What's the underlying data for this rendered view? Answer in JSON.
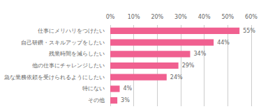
{
  "chart_data": {
    "type": "bar",
    "orientation": "horizontal",
    "categories": [
      "仕事にメリハリをつけたい",
      "自己研鑽・スキルアップをしたい",
      "残業時間を減らしたい",
      "他の仕事にチャレンジしたい",
      "急な業務依頼を受けられるようにしたい",
      "特にない",
      "その他"
    ],
    "values": [
      55,
      44,
      34,
      29,
      24,
      4,
      3
    ],
    "value_labels": [
      "55%",
      "44%",
      "34%",
      "29%",
      "24%",
      "4%",
      "3%"
    ],
    "data_labels": true,
    "color": "#F06090",
    "xlim": [
      0,
      60
    ],
    "xticks": [
      {
        "value": 0,
        "label": "0%"
      },
      {
        "value": 10,
        "label": "10%"
      },
      {
        "value": 20,
        "label": "20%"
      },
      {
        "value": 30,
        "label": "30%"
      },
      {
        "value": 40,
        "label": "40%"
      },
      {
        "value": 50,
        "label": "50%"
      },
      {
        "value": 60,
        "label": "60%"
      }
    ],
    "grid": true
  }
}
